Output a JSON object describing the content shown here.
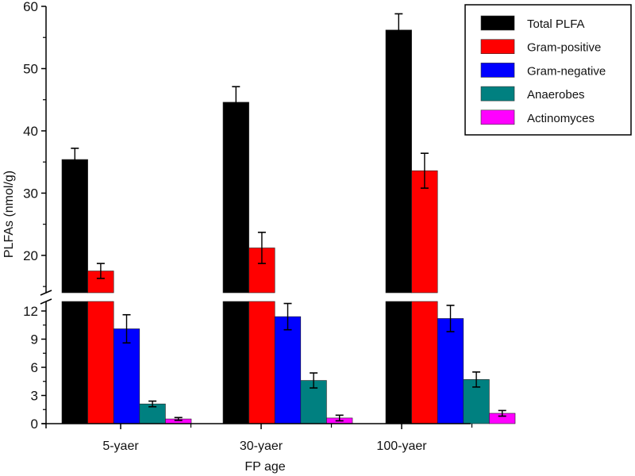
{
  "chart_data": {
    "type": "bar",
    "title": "",
    "xlabel": "FP age",
    "ylabel": "PLFAs (nmol/g)",
    "categories": [
      "5-yaer",
      "30-yaer",
      "100-yaer"
    ],
    "series": [
      {
        "name": "Total PLFA",
        "color": "#000000",
        "values": [
          35.4,
          44.6,
          56.2
        ],
        "errors": [
          1.8,
          2.5,
          2.6
        ]
      },
      {
        "name": "Gram-positive",
        "color": "#ff0000",
        "values": [
          17.5,
          21.2,
          33.6
        ],
        "errors": [
          1.2,
          2.5,
          2.8
        ]
      },
      {
        "name": "Gram-negative",
        "color": "#0000ff",
        "values": [
          10.1,
          11.4,
          11.2
        ],
        "errors": [
          1.5,
          1.4,
          1.4
        ]
      },
      {
        "name": "Anaerobes",
        "color": "#008080",
        "values": [
          2.1,
          4.6,
          4.7
        ],
        "errors": [
          0.3,
          0.8,
          0.8
        ]
      },
      {
        "name": "Actinomyces",
        "color": "#ff00ff",
        "values": [
          0.5,
          0.6,
          1.1
        ],
        "errors": [
          0.15,
          0.3,
          0.3
        ]
      }
    ],
    "y_axis_break": true,
    "ylim_lower": [
      0,
      13
    ],
    "ylim_upper": [
      14,
      60
    ],
    "yticks_lower": [
      "0",
      "3",
      "6",
      "9",
      "12"
    ],
    "yticks_upper": [
      "20",
      "30",
      "40",
      "50",
      "60"
    ],
    "legend_position": "top-right",
    "grid": false
  }
}
